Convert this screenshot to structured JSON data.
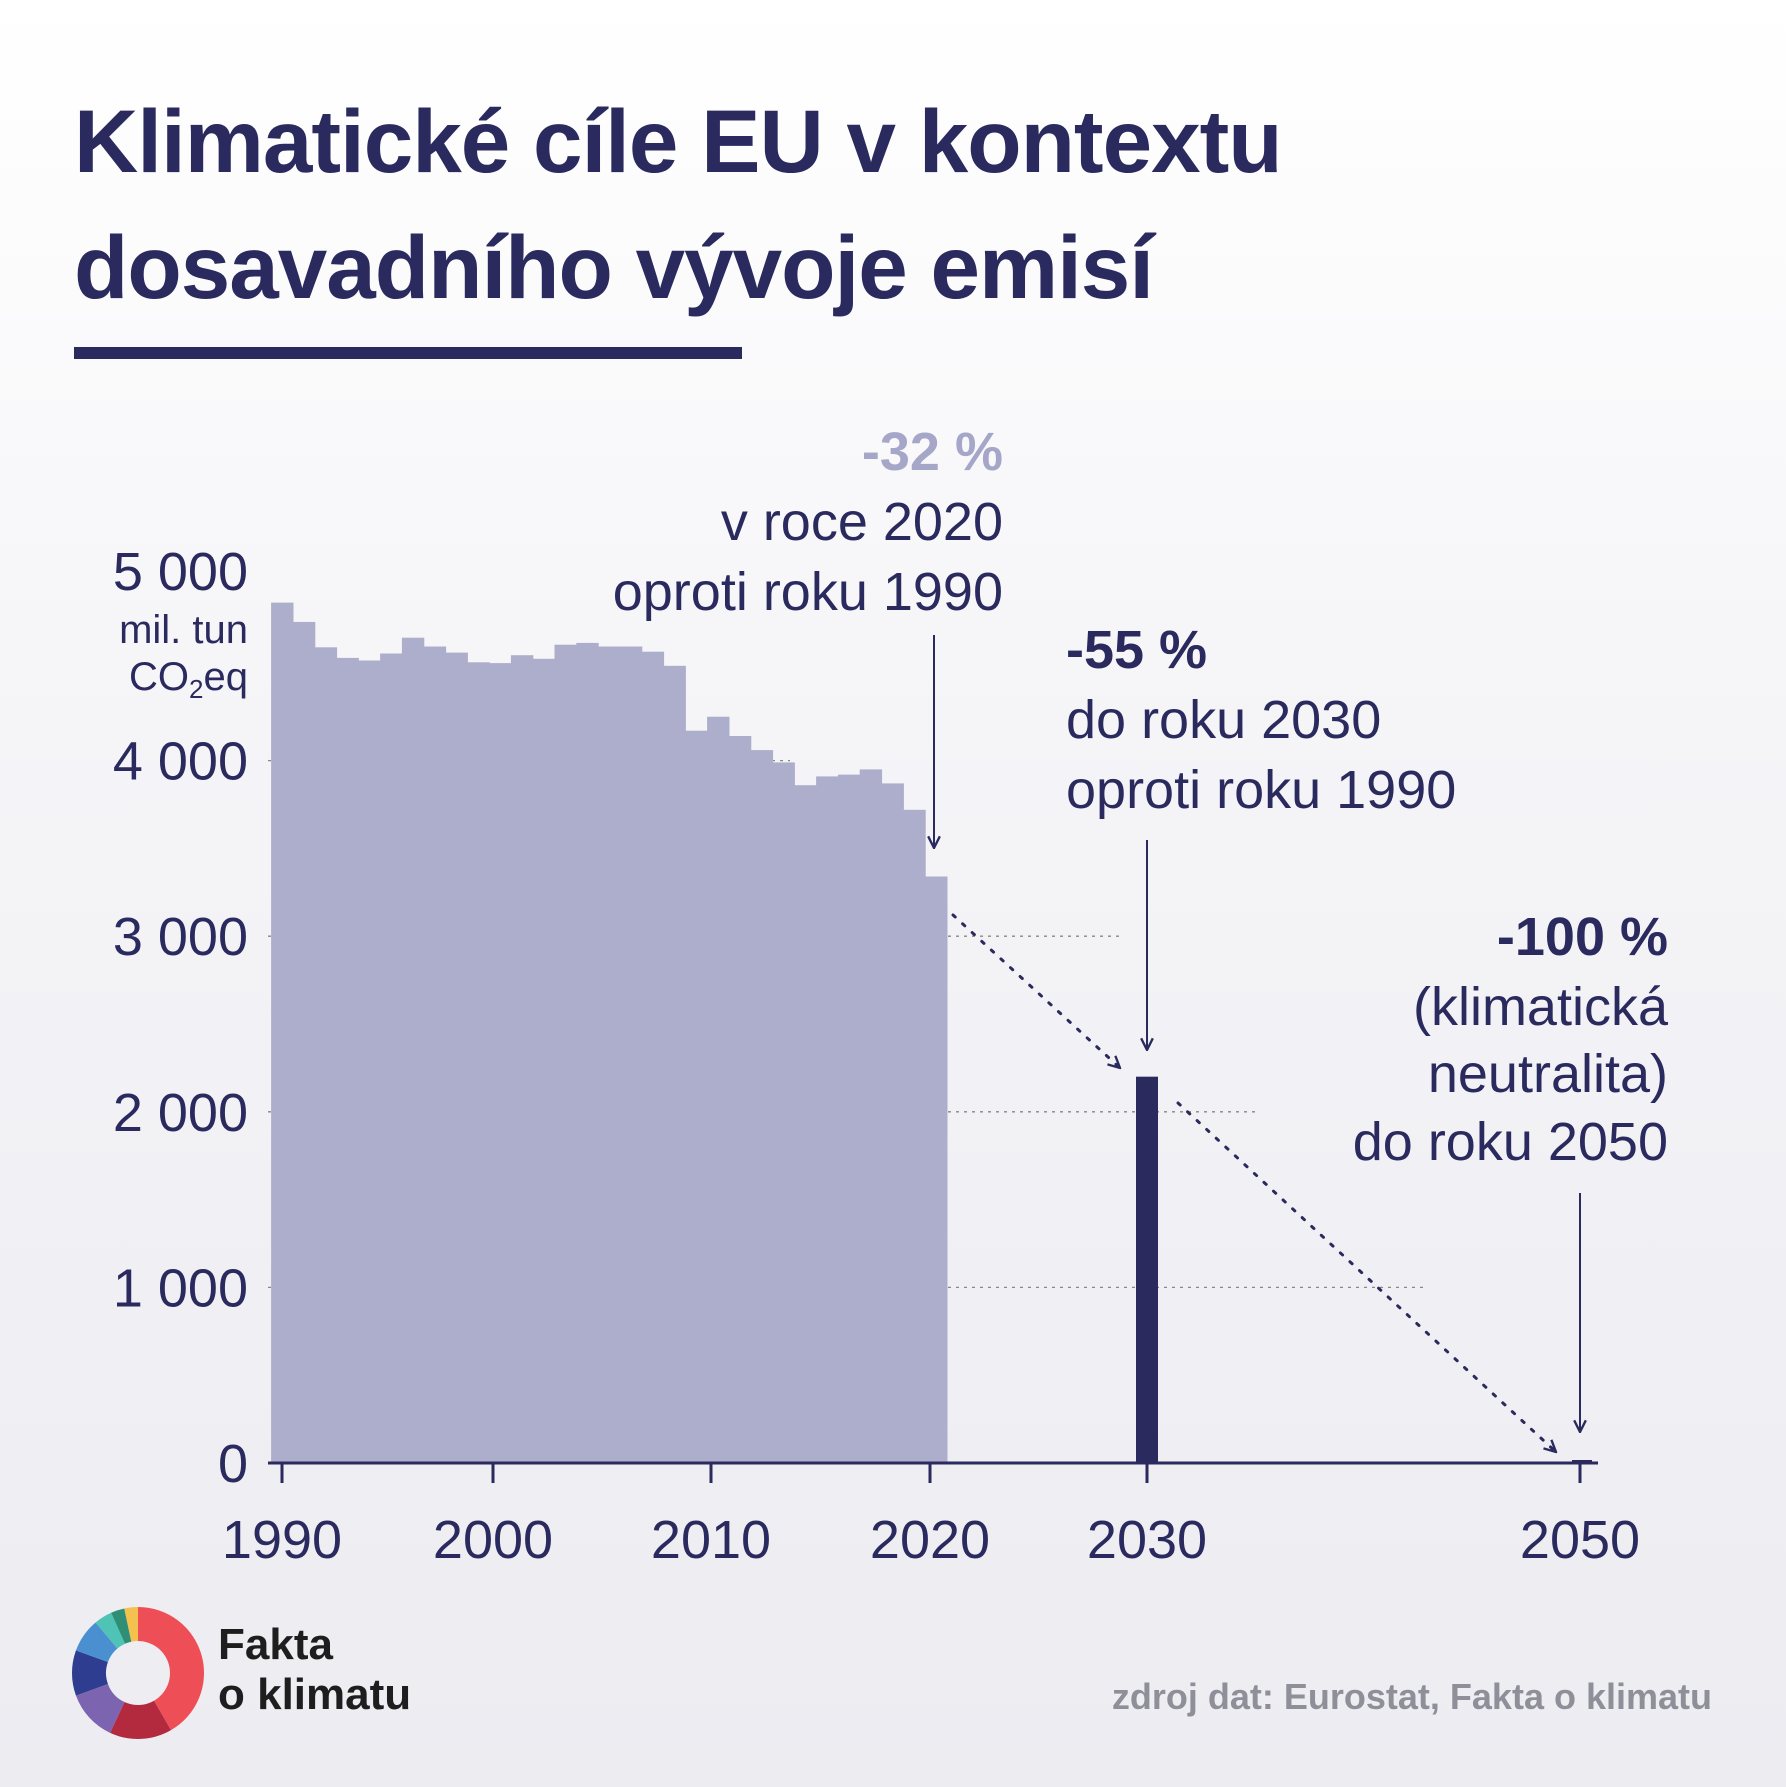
{
  "title_line1": "Klimatické cíle EU v kontextu",
  "title_line2": "dosavadního vývoje emisí",
  "brand": {
    "line1": "Fakta",
    "line2": "o klimatu"
  },
  "source": "zdroj dat: Eurostat, Fakta o klimatu",
  "colors": {
    "history": "#adaecc",
    "target": "#2a2a5f",
    "text": "#2a2a5f",
    "accent_light": "#a6a6c8"
  },
  "logo_segments": [
    "#ee4f57",
    "#b3293d",
    "#7d64b0",
    "#2e3d8f",
    "#4a90d0",
    "#4fc3b6",
    "#2f8f76",
    "#f2c14e"
  ],
  "chart_data": {
    "type": "bar",
    "ylabel_lines": [
      "mil. tun",
      "CO",
      "2",
      "eq"
    ],
    "ylim": [
      0,
      5000
    ],
    "yticks": [
      0,
      1000,
      2000,
      3000,
      4000,
      5000
    ],
    "ytick_labels": [
      "0",
      "1 000",
      "2 000",
      "3 000",
      "4 000",
      "5 000"
    ],
    "xticks": [
      1990,
      2000,
      2010,
      2020,
      2030,
      2050
    ],
    "xtick_labels": [
      "1990",
      "2000",
      "2010",
      "2020",
      "2030",
      "2050"
    ],
    "grid": "dotted horizontal",
    "series": [
      {
        "role": "historical",
        "x": [
          1990,
          1991,
          1992,
          1993,
          1994,
          1995,
          1996,
          1997,
          1998,
          1999,
          2000,
          2001,
          2002,
          2003,
          2004,
          2005,
          2006,
          2007,
          2008,
          2009,
          2010,
          2011,
          2012,
          2013,
          2014,
          2015,
          2016,
          2017,
          2018,
          2019,
          2020
        ],
        "values": [
          4900,
          4790,
          4645,
          4585,
          4570,
          4610,
          4700,
          4650,
          4615,
          4560,
          4555,
          4600,
          4580,
          4660,
          4670,
          4650,
          4650,
          4620,
          4540,
          4170,
          4250,
          4140,
          4060,
          3990,
          3860,
          3910,
          3920,
          3950,
          3870,
          3720,
          3340
        ]
      },
      {
        "role": "target",
        "x": [
          2030
        ],
        "values": [
          2200
        ]
      },
      {
        "role": "target",
        "x": [
          2050
        ],
        "values": [
          0
        ]
      }
    ],
    "trend_lines": [
      {
        "from": [
          2020,
          3340
        ],
        "to": [
          2030,
          2200
        ]
      },
      {
        "from": [
          2030,
          2200
        ],
        "to": [
          2050,
          0
        ]
      }
    ],
    "annotations": [
      {
        "year": 2020,
        "head": "-32 %",
        "lines": [
          "v roce 2020",
          "oproti roku 1990"
        ]
      },
      {
        "year": 2030,
        "head": "-55 %",
        "lines": [
          "do roku 2030",
          "oproti roku 1990"
        ]
      },
      {
        "year": 2050,
        "head": "-100 %",
        "lines": [
          "(klimatická",
          "neutralita)",
          "do roku 2050"
        ]
      }
    ]
  }
}
